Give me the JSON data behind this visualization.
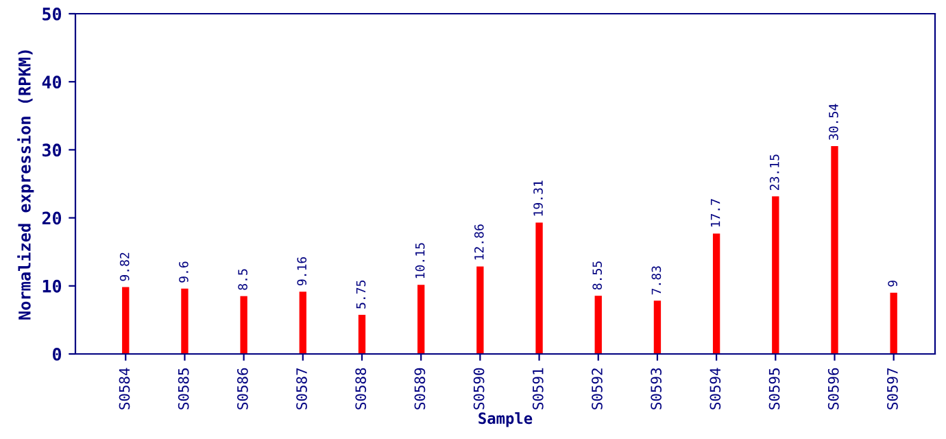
{
  "chart_data": {
    "type": "bar",
    "xlabel": "Sample",
    "ylabel": "Normalized expression (RPKM)",
    "categories": [
      "S0584",
      "S0585",
      "S0586",
      "S0587",
      "S0588",
      "S0589",
      "S0590",
      "S0591",
      "S0592",
      "S0593",
      "S0594",
      "S0595",
      "S0596",
      "S0597"
    ],
    "values": [
      9.82,
      9.6,
      8.5,
      9.16,
      5.75,
      10.15,
      12.86,
      19.31,
      8.55,
      7.83,
      17.7,
      23.15,
      30.54,
      9
    ],
    "color": "#ff0000",
    "ylim": [
      0,
      50
    ],
    "yticks": [
      0,
      10,
      20,
      30,
      40,
      50
    ],
    "data_labels": true,
    "grid": false,
    "legend": false
  }
}
